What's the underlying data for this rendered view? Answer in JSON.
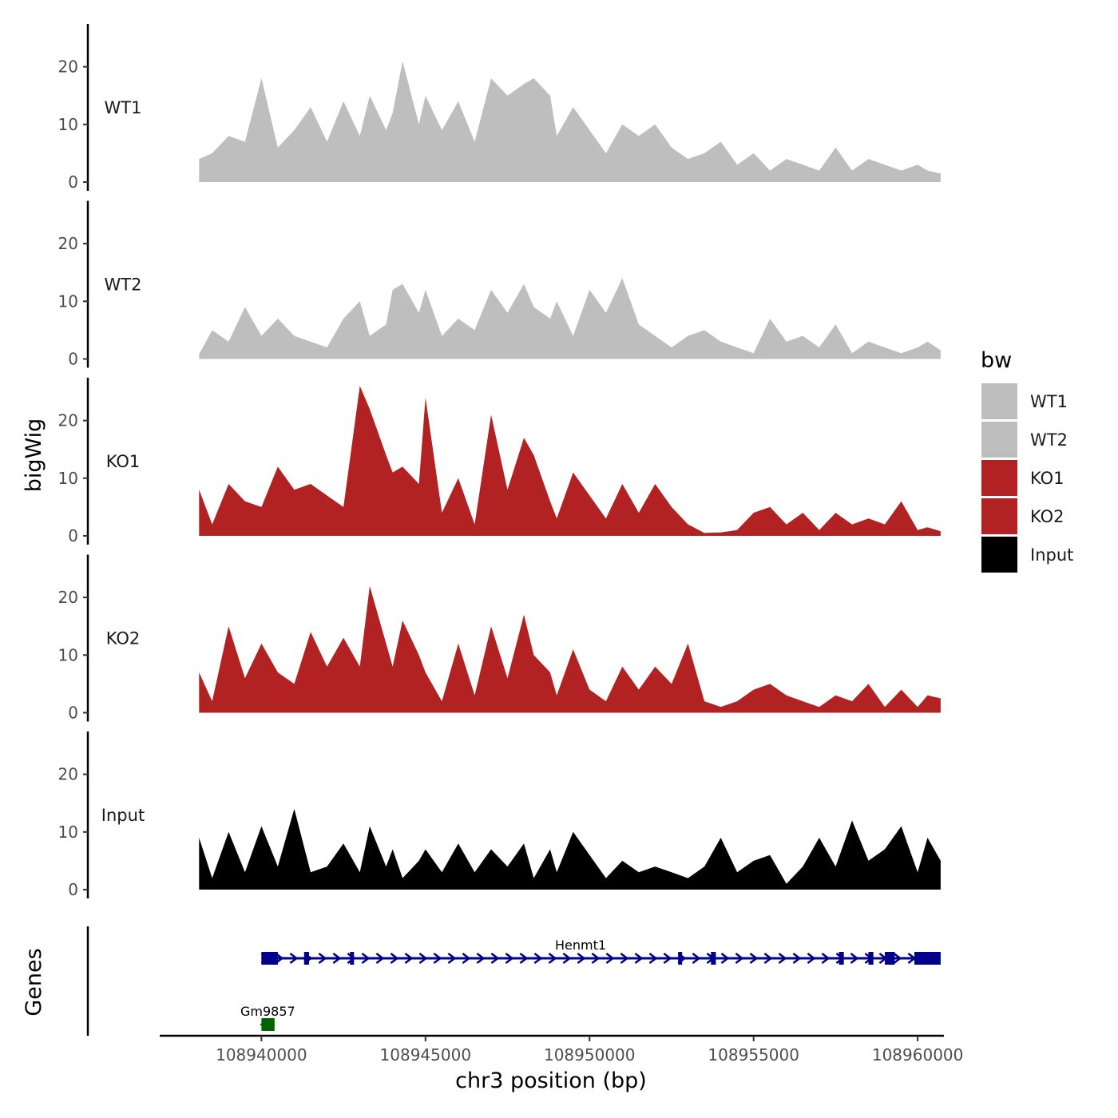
{
  "chart_data": {
    "type": "area",
    "title": "",
    "xlabel": "chr3 position (bp)",
    "ylabel": "bigWig",
    "genes_label": "Genes",
    "xlim": [
      108936900,
      108960800
    ],
    "ylim": [
      0,
      27
    ],
    "x_ticks": [
      108940000,
      108945000,
      108950000,
      108955000,
      108960000
    ],
    "x_tick_labels": [
      "108940000",
      "108945000",
      "108950000",
      "108955000",
      "108960000"
    ],
    "y_ticks": [
      0,
      10,
      20
    ],
    "y_tick_labels": [
      "0",
      "10",
      "20"
    ],
    "legend": {
      "title": "bw",
      "entries": [
        {
          "label": "WT1",
          "color": "#bebebe"
        },
        {
          "label": "WT2",
          "color": "#bebebe"
        },
        {
          "label": "KO1",
          "color": "#b22222"
        },
        {
          "label": "KO2",
          "color": "#b22222"
        },
        {
          "label": "Input",
          "color": "#000000"
        }
      ]
    },
    "track_x": [
      108938100,
      108938500,
      108939000,
      108939500,
      108940000,
      108940500,
      108941000,
      108941500,
      108942000,
      108942500,
      108943000,
      108943300,
      108943800,
      108944000,
      108944300,
      108944800,
      108945000,
      108945500,
      108946000,
      108946500,
      108947000,
      108947500,
      108948000,
      108948300,
      108948800,
      108949000,
      108949500,
      108950000,
      108950500,
      108951000,
      108951500,
      108952000,
      108952500,
      108953000,
      108953500,
      108954000,
      108954500,
      108955000,
      108955500,
      108956000,
      108956500,
      108957000,
      108957500,
      108958000,
      108958500,
      108959000,
      108959500,
      108960000,
      108960300,
      108960700
    ],
    "series": [
      {
        "name": "WT1",
        "color": "#bebebe",
        "values": [
          4,
          5,
          8,
          7,
          18,
          6,
          9,
          13,
          7,
          14,
          8,
          15,
          9,
          12,
          21,
          10,
          15,
          9,
          14,
          7,
          18,
          15,
          17,
          18,
          15,
          8,
          13,
          9,
          5,
          10,
          8,
          10,
          6,
          4,
          5,
          7,
          3,
          5,
          2,
          4,
          3,
          2,
          6,
          2,
          4,
          3,
          2,
          3,
          2,
          1.5
        ]
      },
      {
        "name": "WT2",
        "color": "#bebebe",
        "values": [
          0.8,
          5,
          3,
          9,
          4,
          7,
          4,
          3,
          2,
          7,
          10,
          4,
          6,
          12,
          13,
          8,
          12,
          4,
          7,
          5,
          12,
          8,
          13,
          9,
          7,
          10,
          4,
          12,
          8,
          14,
          6,
          4,
          2,
          4,
          5,
          3,
          2,
          1,
          7,
          3,
          4,
          2,
          6,
          1,
          3,
          2,
          1,
          2,
          3,
          1.5
        ]
      },
      {
        "name": "KO1",
        "color": "#b22222",
        "values": [
          8,
          2,
          9,
          6,
          5,
          12,
          8,
          9,
          7,
          5,
          26,
          22,
          14,
          11,
          12,
          9,
          24,
          4,
          10,
          2,
          21,
          8,
          17,
          14,
          6,
          3,
          11,
          7,
          3,
          9,
          4,
          9,
          5,
          2,
          0.5,
          0.6,
          1,
          4,
          5,
          2,
          4,
          1,
          4,
          2,
          3,
          2,
          6,
          1,
          1.5,
          0.8
        ]
      },
      {
        "name": "KO2",
        "color": "#b22222",
        "values": [
          7,
          2,
          15,
          6,
          12,
          7,
          5,
          14,
          8,
          13,
          8,
          22,
          12,
          8,
          16,
          10,
          7,
          2,
          12,
          3,
          15,
          6,
          17,
          10,
          7,
          3,
          11,
          4,
          2,
          8,
          4,
          8,
          5,
          12,
          2,
          1,
          2,
          4,
          5,
          3,
          2,
          1,
          3,
          2,
          5,
          1,
          4,
          1,
          3,
          2.5
        ]
      },
      {
        "name": "Input",
        "color": "#000000",
        "values": [
          9,
          2,
          10,
          3,
          11,
          4,
          14,
          3,
          4,
          8,
          3,
          11,
          4,
          7,
          2,
          5,
          7,
          3,
          8,
          3,
          7,
          4,
          8,
          2,
          7,
          3,
          10,
          6,
          2,
          5,
          3,
          4,
          3,
          2,
          4,
          9,
          3,
          5,
          6,
          1,
          4,
          9,
          4,
          12,
          5,
          7,
          11,
          3,
          9,
          5
        ]
      }
    ],
    "genes": [
      {
        "name": "Henmt1",
        "start": 108940000,
        "end": 108960700,
        "strand": "+",
        "color": "#00008b",
        "exons": [
          [
            108940000,
            108940500
          ],
          [
            108941300,
            108941450
          ],
          [
            108942700,
            108942800
          ],
          [
            108952700,
            108952800
          ],
          [
            108953700,
            108953850
          ],
          [
            108957600,
            108957750
          ],
          [
            108958500,
            108958650
          ],
          [
            108959000,
            108959300
          ],
          [
            108959900,
            108960700
          ]
        ]
      },
      {
        "name": "Gm9857",
        "start": 108940000,
        "end": 108940400,
        "strand": "-",
        "color": "#006400",
        "exons": [
          [
            108940000,
            108940400
          ]
        ]
      }
    ]
  }
}
